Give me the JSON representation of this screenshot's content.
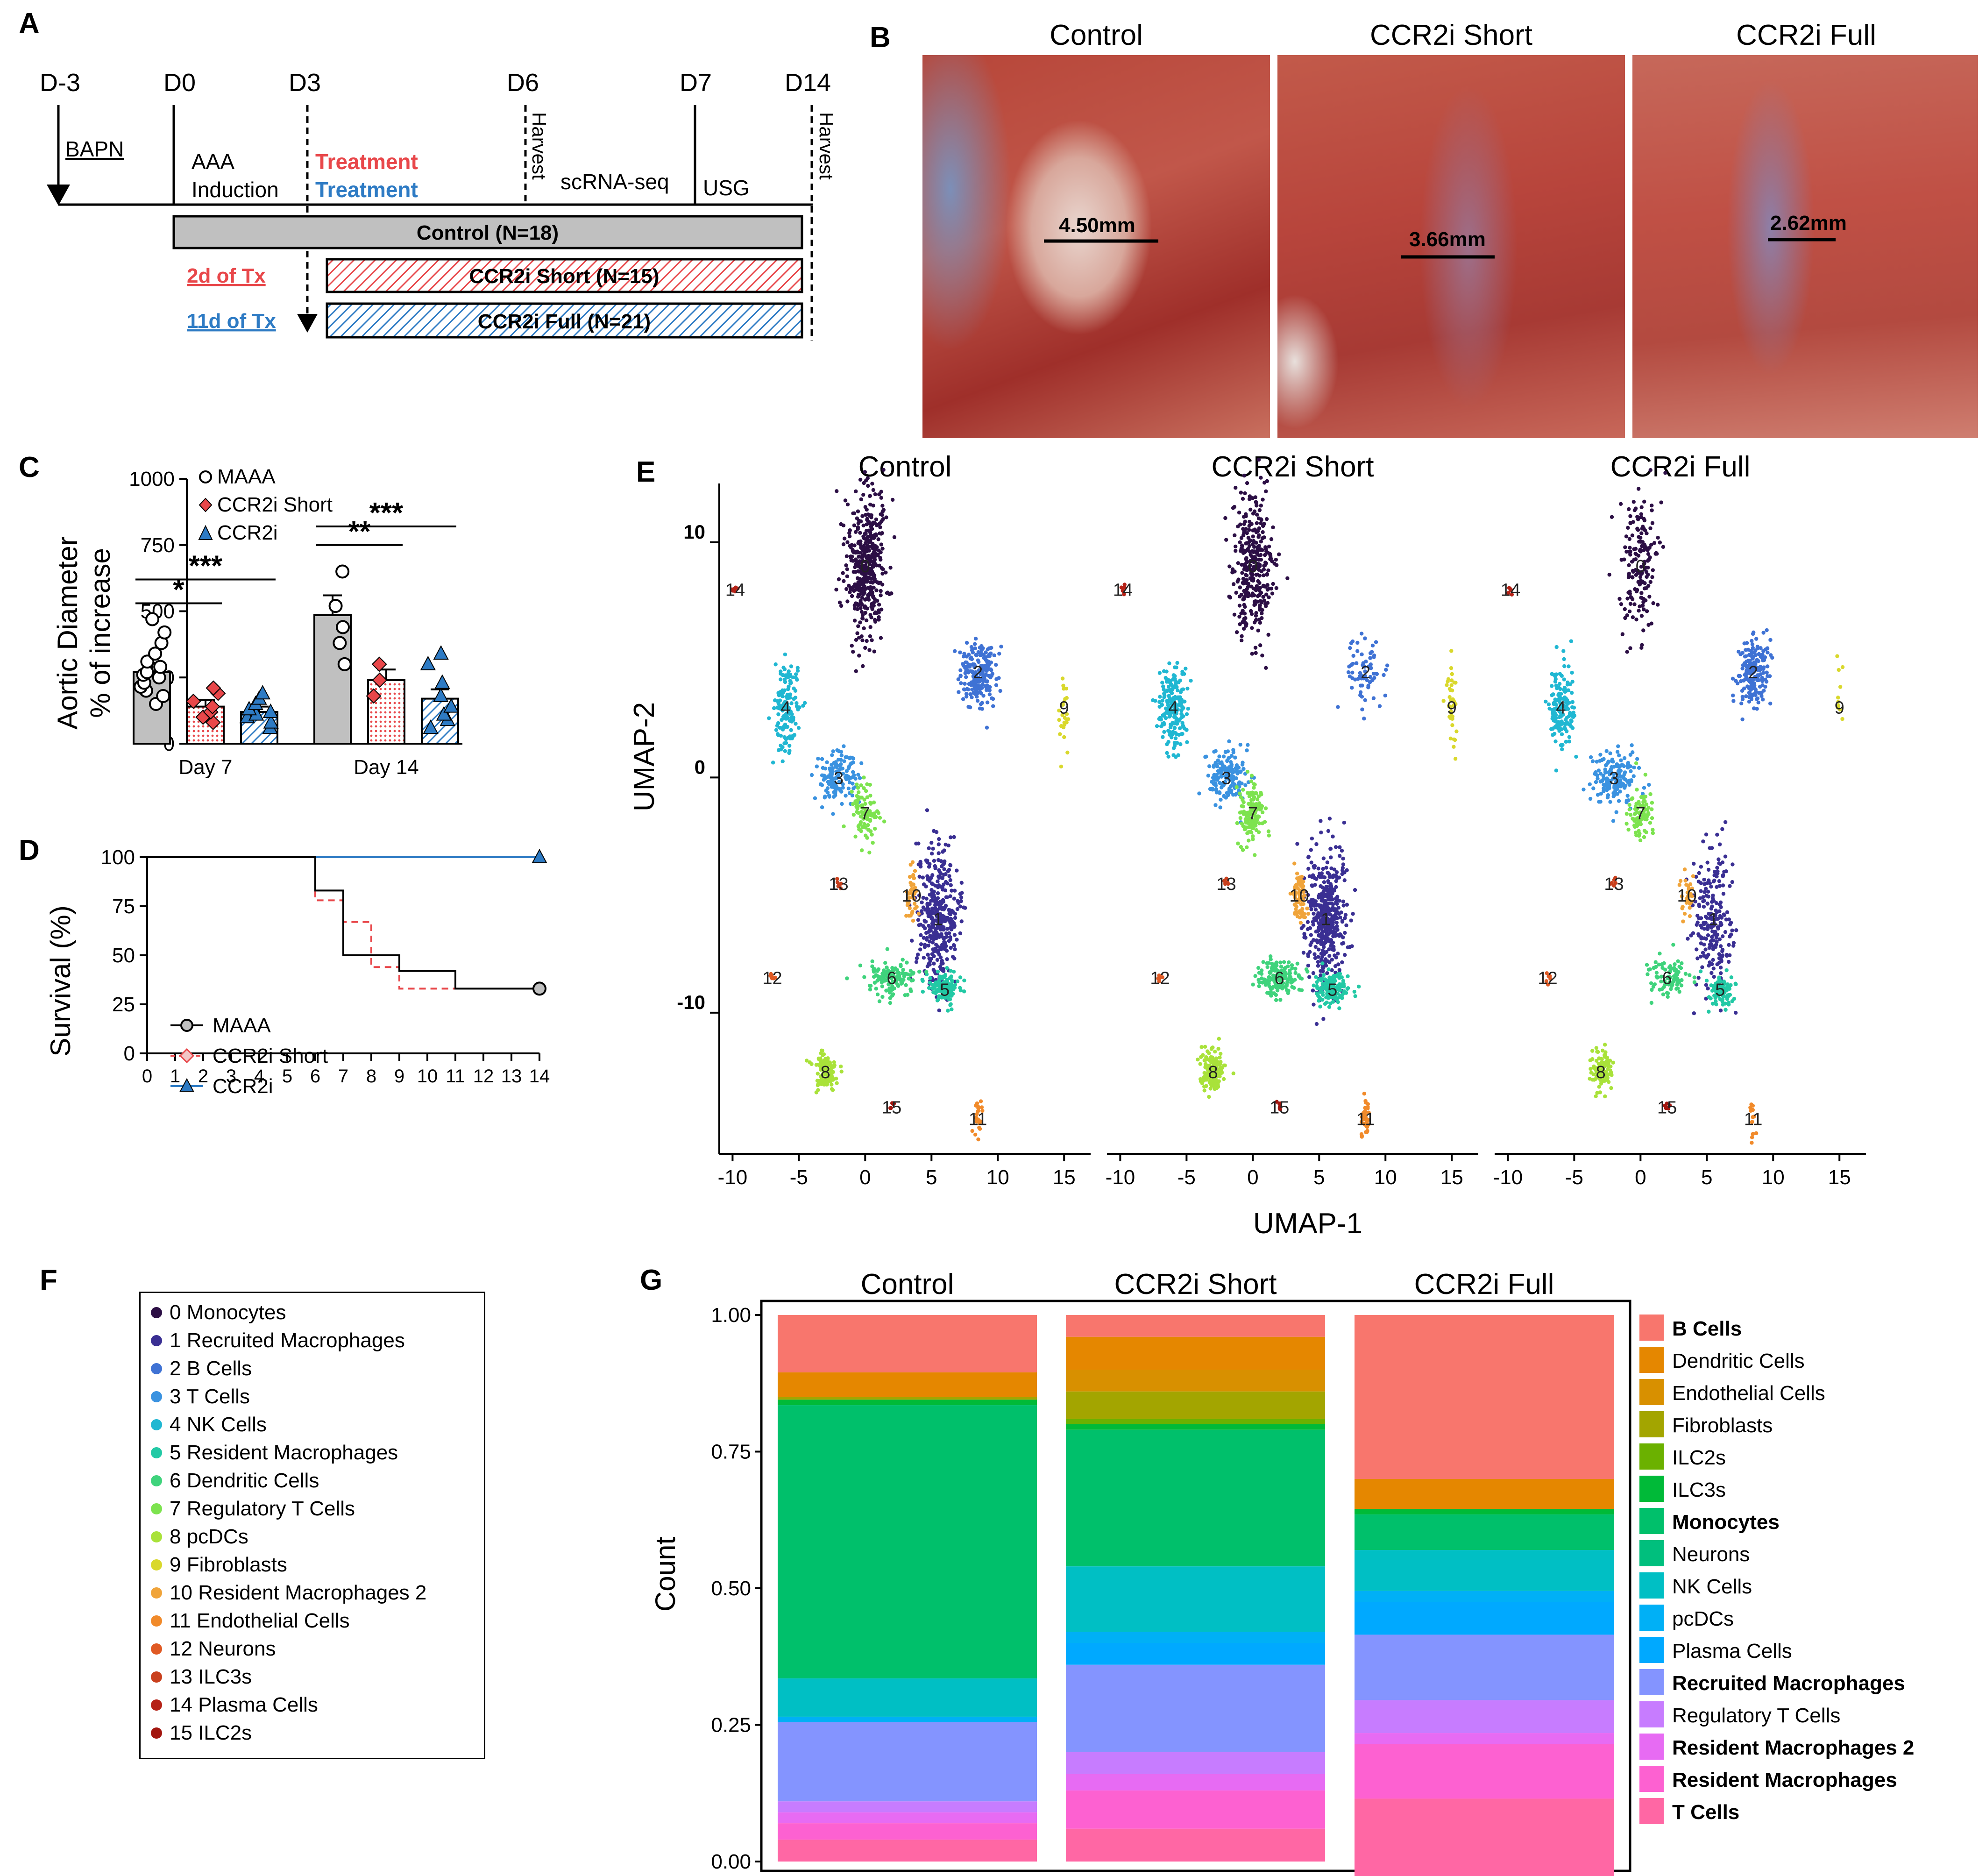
{
  "panel_labels": {
    "a": "A",
    "b": "B",
    "c": "C",
    "d": "D",
    "e": "E",
    "f": "F",
    "g": "G"
  },
  "panel_a": {
    "days": [
      "D-3",
      "D0",
      "D3",
      "D6",
      "D7",
      "D14"
    ],
    "bapn": "BAPN",
    "aaa_line1": "AAA",
    "aaa_line2": "Induction",
    "treatment_red": "Treatment",
    "treatment_blue": "Treatment",
    "harvest1": "Harvest",
    "harvest2": "Harvest",
    "scrnaseq": "scRNA-seq",
    "usg": "USG",
    "control_bar": "Control (N=18)",
    "short_bar": "CCR2i Short (N=15)",
    "full_bar": "CCR2i Full (N=21)",
    "short_tx": "2d of Tx",
    "full_tx": "11d of Tx",
    "colors": {
      "red": "#e8474a",
      "blue": "#2e7bc4",
      "gray": "#c0c0c0"
    }
  },
  "panel_b": {
    "titles": [
      "Control",
      "CCR2i Short",
      "CCR2i Full"
    ],
    "measures": [
      "4.50mm",
      "3.66mm",
      "2.62mm"
    ]
  },
  "panel_c": {
    "chart_data": {
      "type": "bar",
      "ylabel_line1": "Aortic Diameter",
      "ylabel_line2": "% of increase",
      "categories": [
        "Day 7",
        "Day 14"
      ],
      "ylim": [
        0,
        1000
      ],
      "yticks": [
        "0",
        "250",
        "500",
        "750",
        "1000"
      ],
      "series": [
        {
          "name": "MAAA",
          "values": [
            270,
            485
          ],
          "error": [
            35,
            75
          ],
          "points": [
            [
              150,
              180,
              200,
              215,
              230,
              250,
              260,
              270,
              290,
              310,
              340,
              380,
              420,
              470
            ],
            [
              300,
              380,
              440,
              520,
              650
            ]
          ],
          "color": "#c8c8c8",
          "marker": "circle"
        },
        {
          "name": "CCR2i Short",
          "values": [
            140,
            240
          ],
          "error": [
            25,
            40
          ],
          "points": [
            [
              80,
              100,
              120,
              140,
              160,
              190,
              210
            ],
            [
              180,
              240,
              300
            ]
          ],
          "color": "#f2c6c6",
          "marker": "diamond"
        },
        {
          "name": "CCR2i",
          "values": [
            120,
            170
          ],
          "error": [
            20,
            35
          ],
          "points": [
            [
              60,
              80,
              100,
              110,
              120,
              130,
              150,
              170,
              190
            ],
            [
              60,
              90,
              110,
              140,
              180,
              230,
              300,
              340
            ]
          ],
          "color": "#a8c8e8",
          "marker": "triangle"
        }
      ],
      "significance": [
        {
          "label": "*",
          "group": "Day 7",
          "from": "MAAA",
          "to": "CCR2i Short"
        },
        {
          "label": "***",
          "group": "Day 7",
          "from": "MAAA",
          "to": "CCR2i"
        },
        {
          "label": "**",
          "group": "Day 14",
          "from": "MAAA",
          "to": "CCR2i Short"
        },
        {
          "label": "***",
          "group": "Day 14",
          "from": "MAAA",
          "to": "CCR2i"
        }
      ]
    }
  },
  "panel_d": {
    "chart_data": {
      "type": "line",
      "ylabel": "Survival (%)",
      "xlim": [
        0,
        14
      ],
      "ylim": [
        0,
        100
      ],
      "xticks": [
        "0",
        "1",
        "2",
        "3",
        "4",
        "5",
        "6",
        "7",
        "8",
        "9",
        "10",
        "11",
        "12",
        "13",
        "14"
      ],
      "yticks": [
        "0",
        "25",
        "50",
        "75",
        "100"
      ],
      "series": [
        {
          "name": "MAAA",
          "color": "#000000",
          "dash": false,
          "steps": [
            [
              0,
              100
            ],
            [
              6,
              100
            ],
            [
              6,
              83
            ],
            [
              7,
              83
            ],
            [
              7,
              50
            ],
            [
              9,
              50
            ],
            [
              9,
              42
            ],
            [
              11,
              42
            ],
            [
              11,
              33
            ],
            [
              14,
              33
            ]
          ]
        },
        {
          "name": "CCR2i Short",
          "color": "#e8474a",
          "dash": true,
          "steps": [
            [
              0,
              100
            ],
            [
              6,
              100
            ],
            [
              6,
              78
            ],
            [
              7,
              78
            ],
            [
              7,
              67
            ],
            [
              8,
              67
            ],
            [
              8,
              44
            ],
            [
              9,
              44
            ],
            [
              9,
              33
            ],
            [
              11,
              33
            ]
          ]
        },
        {
          "name": "CCR2i",
          "color": "#2e7bc4",
          "dash": false,
          "steps": [
            [
              0,
              100
            ],
            [
              14,
              100
            ]
          ]
        }
      ]
    }
  },
  "panel_e": {
    "chart_data": {
      "type": "scatter",
      "titles": [
        "Control",
        "CCR2i Short",
        "CCR2i Full"
      ],
      "xlabel": "UMAP-1",
      "ylabel": "UMAP-2",
      "xlim": [
        -11,
        17
      ],
      "ylim": [
        -16,
        12.5
      ],
      "xticks": [
        "-10",
        "-5",
        "0",
        "5",
        "10",
        "15"
      ],
      "yticks": [
        "10",
        "0",
        "-10"
      ],
      "clusters": [
        {
          "id": "0",
          "x": 0,
          "y": 9,
          "sx": 1.5,
          "sy": 3.0,
          "color": "#2c0f45",
          "n": [
            420,
            330,
            170
          ]
        },
        {
          "id": "1",
          "x": 5.5,
          "y": -6,
          "sx": 1.5,
          "sy": 3.0,
          "color": "#3a2f93",
          "n": [
            380,
            420,
            220
          ]
        },
        {
          "id": "2",
          "x": 8.5,
          "y": 4.5,
          "sx": 1.3,
          "sy": 1.4,
          "color": "#3f72d4",
          "n": [
            200,
            70,
            200
          ]
        },
        {
          "id": "3",
          "x": -2,
          "y": 0,
          "sx": 1.6,
          "sy": 1.2,
          "color": "#3a92e0",
          "n": [
            140,
            160,
            170
          ]
        },
        {
          "id": "4",
          "x": -6,
          "y": 3,
          "sx": 1.0,
          "sy": 1.8,
          "color": "#20b7d2",
          "n": [
            150,
            200,
            160
          ]
        },
        {
          "id": "5",
          "x": 6,
          "y": -9,
          "sx": 1.2,
          "sy": 0.7,
          "color": "#22c9a5",
          "n": [
            120,
            150,
            80
          ]
        },
        {
          "id": "6",
          "x": 2,
          "y": -8.5,
          "sx": 1.8,
          "sy": 0.8,
          "color": "#3fd37c",
          "n": [
            120,
            150,
            90
          ]
        },
        {
          "id": "7",
          "x": 0,
          "y": -1.5,
          "sx": 1.0,
          "sy": 1.2,
          "color": "#7de34f",
          "n": [
            90,
            140,
            80
          ]
        },
        {
          "id": "8",
          "x": -3,
          "y": -12.5,
          "sx": 0.8,
          "sy": 0.9,
          "color": "#a9e23a",
          "n": [
            110,
            170,
            110
          ]
        },
        {
          "id": "9",
          "x": 15,
          "y": 3,
          "sx": 0.4,
          "sy": 2.0,
          "color": "#d9d82c",
          "n": [
            25,
            40,
            10
          ]
        },
        {
          "id": "10",
          "x": 3.5,
          "y": -5,
          "sx": 0.5,
          "sy": 1.2,
          "color": "#f0a43a",
          "n": [
            40,
            70,
            30
          ]
        },
        {
          "id": "11",
          "x": 8.5,
          "y": -14.5,
          "sx": 0.3,
          "sy": 0.8,
          "color": "#f18a2a",
          "n": [
            25,
            35,
            15
          ]
        },
        {
          "id": "12",
          "x": -7,
          "y": -8.5,
          "sx": 0.2,
          "sy": 0.2,
          "color": "#e05a24",
          "n": [
            6,
            6,
            6
          ]
        },
        {
          "id": "13",
          "x": -2,
          "y": -4.5,
          "sx": 0.2,
          "sy": 0.2,
          "color": "#c9401d",
          "n": [
            6,
            6,
            6
          ]
        },
        {
          "id": "14",
          "x": -9.8,
          "y": 8,
          "sx": 0.2,
          "sy": 0.2,
          "color": "#b52217",
          "n": [
            6,
            6,
            6
          ]
        },
        {
          "id": "15",
          "x": 2,
          "y": -14,
          "sx": 0.2,
          "sy": 0.2,
          "color": "#a3160f",
          "n": [
            6,
            6,
            6
          ]
        }
      ]
    }
  },
  "panel_f": {
    "legend": [
      {
        "label": "0 Monocytes",
        "color": "#2c0f45"
      },
      {
        "label": "1 Recruited Macrophages",
        "color": "#3a2f93"
      },
      {
        "label": "2 B Cells",
        "color": "#3f72d4"
      },
      {
        "label": "3 T Cells",
        "color": "#3a92e0"
      },
      {
        "label": "4 NK Cells",
        "color": "#20b7d2"
      },
      {
        "label": "5 Resident Macrophages",
        "color": "#22c9a5"
      },
      {
        "label": "6 Dendritic Cells",
        "color": "#3fd37c"
      },
      {
        "label": "7 Regulatory T Cells",
        "color": "#7de34f"
      },
      {
        "label": "8 pcDCs",
        "color": "#a9e23a"
      },
      {
        "label": "9 Fibroblasts",
        "color": "#d9d82c"
      },
      {
        "label": "10 Resident Macrophages 2",
        "color": "#f0a43a"
      },
      {
        "label": "11 Endothelial Cells",
        "color": "#f18a2a"
      },
      {
        "label": "12 Neurons",
        "color": "#e05a24"
      },
      {
        "label": "13 ILC3s",
        "color": "#c9401d"
      },
      {
        "label": "14 Plasma Cells",
        "color": "#b52217"
      },
      {
        "label": "15 ILC2s",
        "color": "#a3160f"
      }
    ]
  },
  "panel_g": {
    "chart_data": {
      "type": "bar",
      "stacked": true,
      "categories": [
        "Control",
        "CCR2i Short",
        "CCR2i Full"
      ],
      "ylabel": "Count",
      "ylim": [
        0,
        1
      ],
      "yticks": [
        "0.00",
        "0.25",
        "0.50",
        "0.75",
        "1.00"
      ],
      "series": [
        {
          "name": "B Cells",
          "color": "#f8766d",
          "bold": true,
          "values": [
            0.105,
            0.04,
            0.3
          ]
        },
        {
          "name": "Dendritic Cells",
          "color": "#e58700",
          "bold": false,
          "values": [
            0.045,
            0.06,
            0.055
          ]
        },
        {
          "name": "Endothelial Cells",
          "color": "#d89000",
          "bold": false,
          "values": [
            0.0,
            0.04,
            0.0
          ]
        },
        {
          "name": "Fibroblasts",
          "color": "#a3a500",
          "bold": false,
          "values": [
            0.005,
            0.05,
            0.0
          ]
        },
        {
          "name": "ILC2s",
          "color": "#6bb100",
          "bold": false,
          "values": [
            0.0,
            0.01,
            0.0
          ]
        },
        {
          "name": "ILC3s",
          "color": "#00ba38",
          "bold": false,
          "values": [
            0.01,
            0.01,
            0.01
          ]
        },
        {
          "name": "Monocytes",
          "color": "#00c06b",
          "bold": true,
          "values": [
            0.5,
            0.25,
            0.065
          ]
        },
        {
          "name": "Neurons",
          "color": "#00bf7d",
          "bold": false,
          "values": [
            0.0,
            0.0,
            0.0
          ]
        },
        {
          "name": "NK Cells",
          "color": "#00bfc4",
          "bold": false,
          "values": [
            0.07,
            0.12,
            0.075
          ]
        },
        {
          "name": "pcDCs",
          "color": "#00b0f6",
          "bold": false,
          "values": [
            0.01,
            0.02,
            0.02
          ]
        },
        {
          "name": "Plasma Cells",
          "color": "#00a9ff",
          "bold": false,
          "values": [
            0.0,
            0.04,
            0.06
          ]
        },
        {
          "name": "Recruited Macrophages",
          "color": "#8494ff",
          "bold": true,
          "values": [
            0.145,
            0.16,
            0.12
          ]
        },
        {
          "name": "Regulatory T Cells",
          "color": "#c77cff",
          "bold": false,
          "values": [
            0.02,
            0.04,
            0.06
          ]
        },
        {
          "name": "Resident Macrophages 2",
          "color": "#e76bf3",
          "bold": true,
          "values": [
            0.02,
            0.03,
            0.02
          ]
        },
        {
          "name": "Resident Macrophages",
          "color": "#fd61d1",
          "bold": true,
          "values": [
            0.03,
            0.07,
            0.1
          ]
        },
        {
          "name": "T Cells",
          "color": "#ff67a4",
          "bold": true,
          "values": [
            0.04,
            0.06,
            0.195
          ]
        }
      ]
    }
  }
}
